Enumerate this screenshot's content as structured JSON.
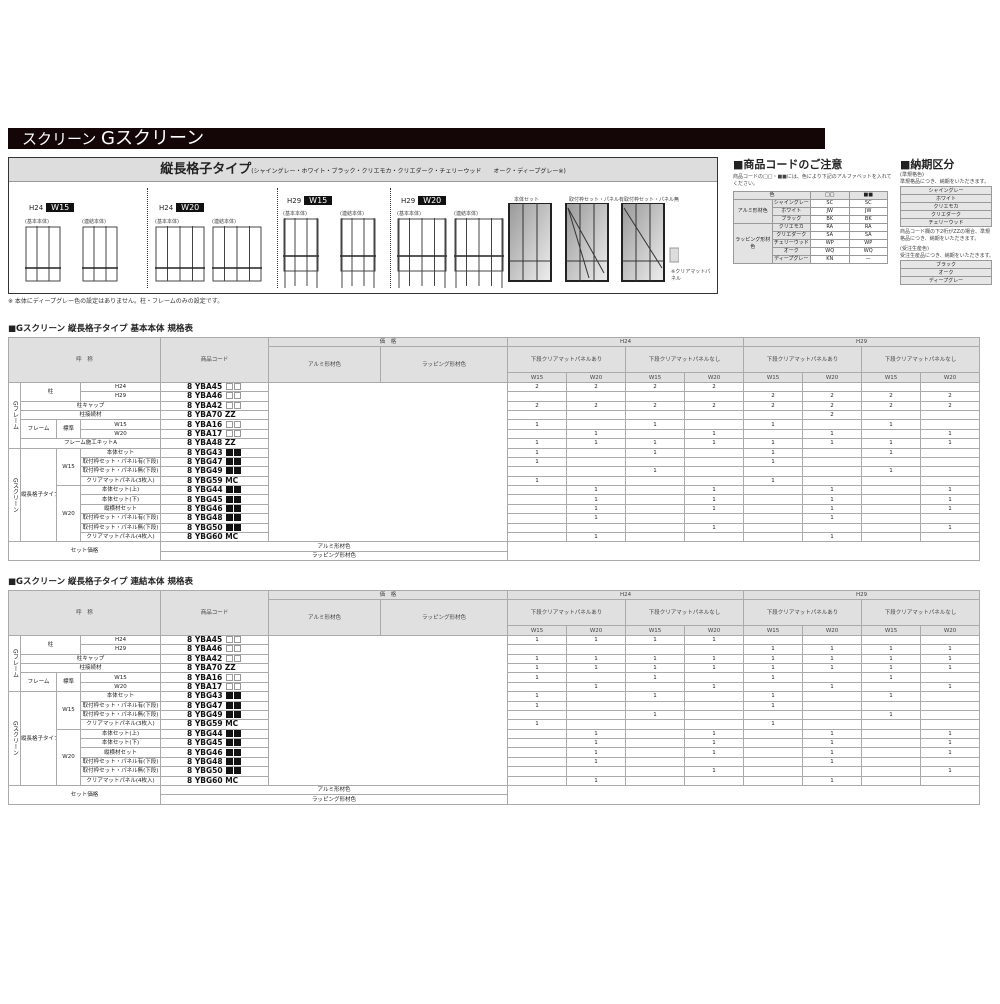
{
  "title": {
    "prefix": "スクリーン",
    "main": "Gスクリーン"
  },
  "diagram": {
    "heading": "縦長格子タイプ",
    "colors_note": "(シャイングレー・ホワイト・ブラック・クリエモカ・クリエダーク・チェリーウッド　　オーク・ディープグレー※)",
    "groups": [
      {
        "h": "H24",
        "w": "W15",
        "labels": [
          "(基本本体)",
          "(連結本体)"
        ]
      },
      {
        "h": "H24",
        "w": "W20",
        "labels": [
          "(基本本体)",
          "(連結本体)"
        ]
      },
      {
        "h": "H29",
        "w": "W15",
        "labels": [
          "(基本本体)",
          "(連結本体)"
        ]
      },
      {
        "h": "H29",
        "w": "W20",
        "labels": [
          "(基本本体)",
          "(連結本体)"
        ]
      }
    ],
    "panel_labels": [
      "本体セット",
      "取付枠セット・パネル有",
      "取付枠セット・パネル無"
    ],
    "clear_panel_label": "※クリアマットパネル",
    "footnote": "※ 本体にディープグレー色の設定はありません。柱・フレームのみの設定です。"
  },
  "code_notice": {
    "title": "■商品コードのご注意",
    "text": "商品コードの□□・■■には、色により下記のアルファベットを入れてください。",
    "header": [
      "色",
      "□□",
      "■■"
    ],
    "groups": [
      {
        "name": "アルミ形材色",
        "rows": [
          [
            "シャイングレー",
            "SC",
            "SC"
          ],
          [
            "ホワイト",
            "JW",
            "JW"
          ],
          [
            "ブラック",
            "BK",
            "BK"
          ]
        ]
      },
      {
        "name": "ラッピング形材色",
        "rows": [
          [
            "クリエモカ",
            "RA",
            "RA"
          ],
          [
            "クリエダーク",
            "SA",
            "SA"
          ],
          [
            "チェリーウッド",
            "WP",
            "WP"
          ],
          [
            "オーク",
            "WQ",
            "WQ"
          ],
          [
            "ディープグレー",
            "KN",
            "—"
          ]
        ]
      }
    ]
  },
  "delivery": {
    "title": "■納期区分",
    "std_label": "(準規格色)",
    "std_text": "準規格品につき、納期をいただきます。",
    "std_colors": [
      "シャイングレー",
      "ホワイト",
      "クリエモカ",
      "クリエダーク",
      "チェリーウッド"
    ],
    "zz_text": "商品コード欄の下2桁がZZの場合、準規格品につき、納期をいただきます。",
    "order_label": "(受注生産色)",
    "order_text": "受注生産品につき、納期をいただきます。",
    "order_colors": [
      "ブラック",
      "オーク",
      "ディープグレー"
    ]
  },
  "headers": {
    "name": "呼　称",
    "code": "商品コード",
    "price": "価　格",
    "alumi": "アルミ形材色",
    "wrap": "ラッピング形材色",
    "h24": "H24",
    "h29": "H29",
    "with_panel": "下段クリアマットパネルあり",
    "without_panel": "下段クリアマットパネルなし",
    "w15": "W15",
    "w20": "W20",
    "set_price": "セット価格"
  },
  "labels": {
    "g_frame": "Gフレーム",
    "g_screen": "Gスクリーン",
    "pillar": "柱",
    "h24": "H24",
    "h29": "H29",
    "cap": "柱キャップ",
    "joint": "柱接続材",
    "frame": "フレーム",
    "standard": "標準",
    "w15": "W15",
    "w20": "W20",
    "kit": "フレーム施工キットA",
    "tall_lattice": "縦長格子タイプ",
    "w15_items": [
      "本体セット",
      "取付枠セット・パネル有(下段)",
      "取付枠セット・パネル無(下段)",
      "クリアマットパネル(3枚入)"
    ],
    "w20_items": [
      "本体セット(上)",
      "本体セット(下)",
      "縦横材セット",
      "取付枠セット・パネル有(下段)",
      "取付枠セット・パネル無(下段)",
      "クリアマットパネル(4枚入)"
    ]
  },
  "tables": [
    {
      "title": "■Gスクリーン 縦長格子タイプ 基本本体 規格表",
      "codes": [
        [
          "8 YBA45",
          "□□"
        ],
        [
          "8 YBA46",
          "□□"
        ],
        [
          "8 YBA42",
          "□□"
        ],
        [
          "8 YBA70",
          "ZZ"
        ],
        [
          "8 YBA16",
          "□□"
        ],
        [
          "8 YBA17",
          "□□"
        ],
        [
          "8 YBA48",
          "ZZ"
        ],
        [
          "8 YBG43",
          "■■"
        ],
        [
          "8 YBG47",
          "■■"
        ],
        [
          "8 YBG49",
          "■■"
        ],
        [
          "8 YBG59",
          "MC"
        ],
        [
          "8 YBG44",
          "■■"
        ],
        [
          "8 YBG45",
          "■■"
        ],
        [
          "8 YBG46",
          "■■"
        ],
        [
          "8 YBG48",
          "■■"
        ],
        [
          "8 YBG50",
          "■■"
        ],
        [
          "8 YBG60",
          "MC"
        ]
      ],
      "qty": [
        [
          "2",
          "2",
          "2",
          "2",
          "",
          "",
          "",
          ""
        ],
        [
          "",
          "",
          "",
          "",
          "2",
          "2",
          "2",
          "2"
        ],
        [
          "2",
          "2",
          "2",
          "2",
          "2",
          "2",
          "2",
          "2"
        ],
        [
          "",
          "",
          "",
          "",
          "",
          "2",
          "",
          ""
        ],
        [
          "1",
          "",
          "1",
          "",
          "1",
          "",
          "1",
          ""
        ],
        [
          "",
          "1",
          "",
          "1",
          "",
          "1",
          "",
          "1"
        ],
        [
          "1",
          "1",
          "1",
          "1",
          "1",
          "1",
          "1",
          "1"
        ],
        [
          "1",
          "",
          "1",
          "",
          "1",
          "",
          "1",
          ""
        ],
        [
          "1",
          "",
          "",
          "",
          "1",
          "",
          "",
          ""
        ],
        [
          "",
          "",
          "1",
          "",
          "",
          "",
          "1",
          ""
        ],
        [
          "1",
          "",
          "",
          "",
          "1",
          "",
          "",
          ""
        ],
        [
          "",
          "1",
          "",
          "1",
          "",
          "1",
          "",
          "1"
        ],
        [
          "",
          "1",
          "",
          "1",
          "",
          "1",
          "",
          "1"
        ],
        [
          "",
          "1",
          "",
          "1",
          "",
          "1",
          "",
          "1"
        ],
        [
          "",
          "1",
          "",
          "",
          "",
          "1",
          "",
          ""
        ],
        [
          "",
          "",
          "",
          "1",
          "",
          "",
          "",
          "1"
        ],
        [
          "",
          "1",
          "",
          "",
          "",
          "1",
          "",
          ""
        ]
      ]
    },
    {
      "title": "■Gスクリーン 縦長格子タイプ 連結本体 規格表",
      "codes": [
        [
          "8 YBA45",
          "□□"
        ],
        [
          "8 YBA46",
          "□□"
        ],
        [
          "8 YBA42",
          "□□"
        ],
        [
          "8 YBA70",
          "ZZ"
        ],
        [
          "8 YBA16",
          "□□"
        ],
        [
          "8 YBA17",
          "□□"
        ],
        [
          "8 YBG43",
          "■■"
        ],
        [
          "8 YBG47",
          "■■"
        ],
        [
          "8 YBG49",
          "■■"
        ],
        [
          "8 YBG59",
          "MC"
        ],
        [
          "8 YBG44",
          "■■"
        ],
        [
          "8 YBG45",
          "■■"
        ],
        [
          "8 YBG46",
          "■■"
        ],
        [
          "8 YBG48",
          "■■"
        ],
        [
          "8 YBG50",
          "■■"
        ],
        [
          "8 YBG60",
          "MC"
        ]
      ],
      "qty": [
        [
          "1",
          "1",
          "1",
          "1",
          "",
          "",
          "",
          ""
        ],
        [
          "",
          "",
          "",
          "",
          "1",
          "1",
          "1",
          "1"
        ],
        [
          "1",
          "1",
          "1",
          "1",
          "1",
          "1",
          "1",
          "1"
        ],
        [
          "1",
          "1",
          "1",
          "1",
          "1",
          "1",
          "1",
          "1"
        ],
        [
          "1",
          "",
          "1",
          "",
          "1",
          "",
          "1",
          ""
        ],
        [
          "",
          "1",
          "",
          "1",
          "",
          "1",
          "",
          "1"
        ],
        [
          "1",
          "",
          "1",
          "",
          "1",
          "",
          "1",
          ""
        ],
        [
          "1",
          "",
          "",
          "",
          "1",
          "",
          "",
          ""
        ],
        [
          "",
          "",
          "1",
          "",
          "",
          "",
          "1",
          ""
        ],
        [
          "1",
          "",
          "",
          "",
          "1",
          "",
          "",
          ""
        ],
        [
          "",
          "1",
          "",
          "1",
          "",
          "1",
          "",
          "1"
        ],
        [
          "",
          "1",
          "",
          "1",
          "",
          "1",
          "",
          "1"
        ],
        [
          "",
          "1",
          "",
          "1",
          "",
          "1",
          "",
          "1"
        ],
        [
          "",
          "1",
          "",
          "",
          "",
          "1",
          "",
          ""
        ],
        [
          "",
          "",
          "",
          "1",
          "",
          "",
          "",
          "1"
        ],
        [
          "",
          "1",
          "",
          "",
          "",
          "1",
          "",
          ""
        ]
      ]
    }
  ]
}
